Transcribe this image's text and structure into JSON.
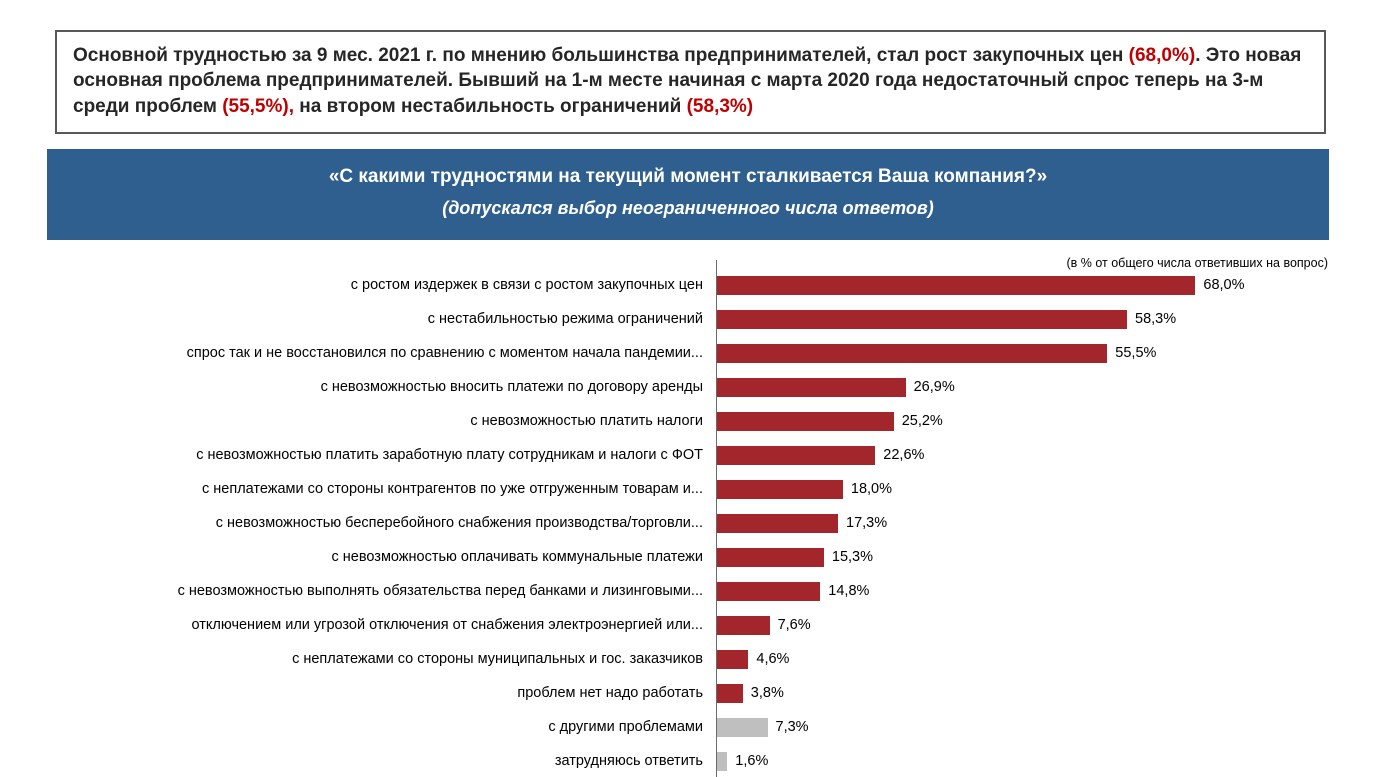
{
  "summary": {
    "segments": [
      {
        "text": "Основной трудностью за 9 мес. 2021 г. по мнению большинства предпринимателей, стал рост закупочных цен ",
        "highlight": false
      },
      {
        "text": "(68,0%)",
        "highlight": true
      },
      {
        "text": ". Это новая основная проблема предпринимателей. Бывший на 1-м месте начиная с марта 2020 года недостаточный спрос теперь на 3-м среди проблем ",
        "highlight": false
      },
      {
        "text": "(55,5%),",
        "highlight": true
      },
      {
        "text": " на втором нестабильность ограничений ",
        "highlight": false
      },
      {
        "text": "(58,3%)",
        "highlight": true
      }
    ]
  },
  "banner": {
    "title": "«С какими трудностями на текущий момент сталкивается Ваша компания?»",
    "subtitle": "(допускался выбор неограниченного числа ответов)"
  },
  "chart": {
    "note": "(в % от  общего числа ответивших на вопрос)"
  },
  "chart_data": {
    "type": "bar",
    "orientation": "horizontal",
    "title": "«С какими трудностями на текущий момент сталкивается Ваша компания?»",
    "subtitle": "(допускался выбор неограниченного числа ответов)",
    "note": "(в % от  общего числа ответивших на вопрос)",
    "unit": "%",
    "xlim": [
      0,
      70
    ],
    "grid": false,
    "legend": false,
    "categories": [
      "с ростом издержек в связи с ростом закупочных цен",
      "с нестабильностью режима ограничений",
      "спрос так и не восстановился по сравнению с моментом начала пандемии...",
      "с невозможностью вносить платежи по договору аренды",
      "с невозможностью платить налоги",
      "с невозможностью платить заработную плату сотрудникам и налоги с ФОТ",
      "с неплатежами со стороны контрагентов по уже отгруженным товарам и...",
      "с невозможностью бесперебойного снабжения производства/торговли...",
      "с невозможностью оплачивать коммунальные платежи",
      "с невозможностью выполнять обязательства перед банками и лизинговыми...",
      "отключением или угрозой отключения от снабжения электроэнергией или...",
      "с неплатежами со стороны муниципальных и гос. заказчиков",
      "проблем нет надо работать",
      "с другими проблемами",
      "затрудняюсь ответить"
    ],
    "values": [
      68.0,
      58.3,
      55.5,
      26.9,
      25.2,
      22.6,
      18.0,
      17.3,
      15.3,
      14.8,
      7.6,
      4.6,
      3.8,
      7.3,
      1.6
    ],
    "value_labels": [
      "68,0%",
      "58,3%",
      "55,5%",
      "26,9%",
      "25,2%",
      "22,6%",
      "18,0%",
      "17,3%",
      "15,3%",
      "14,8%",
      "7,6%",
      "4,6%",
      "3,8%",
      "7,3%",
      "1,6%"
    ],
    "bar_colors": [
      "red",
      "red",
      "red",
      "red",
      "red",
      "red",
      "red",
      "red",
      "red",
      "red",
      "red",
      "red",
      "red",
      "gray",
      "gray"
    ],
    "colors": {
      "red": "#A2262C",
      "gray": "#BFBFBF"
    }
  },
  "theme": {
    "banner_blue": "#2E5F8F",
    "highlight_red": "#C00000",
    "bar_red": "#A2262C",
    "bar_gray": "#BFBFBF",
    "axis_gray": "#6b6b6b"
  }
}
